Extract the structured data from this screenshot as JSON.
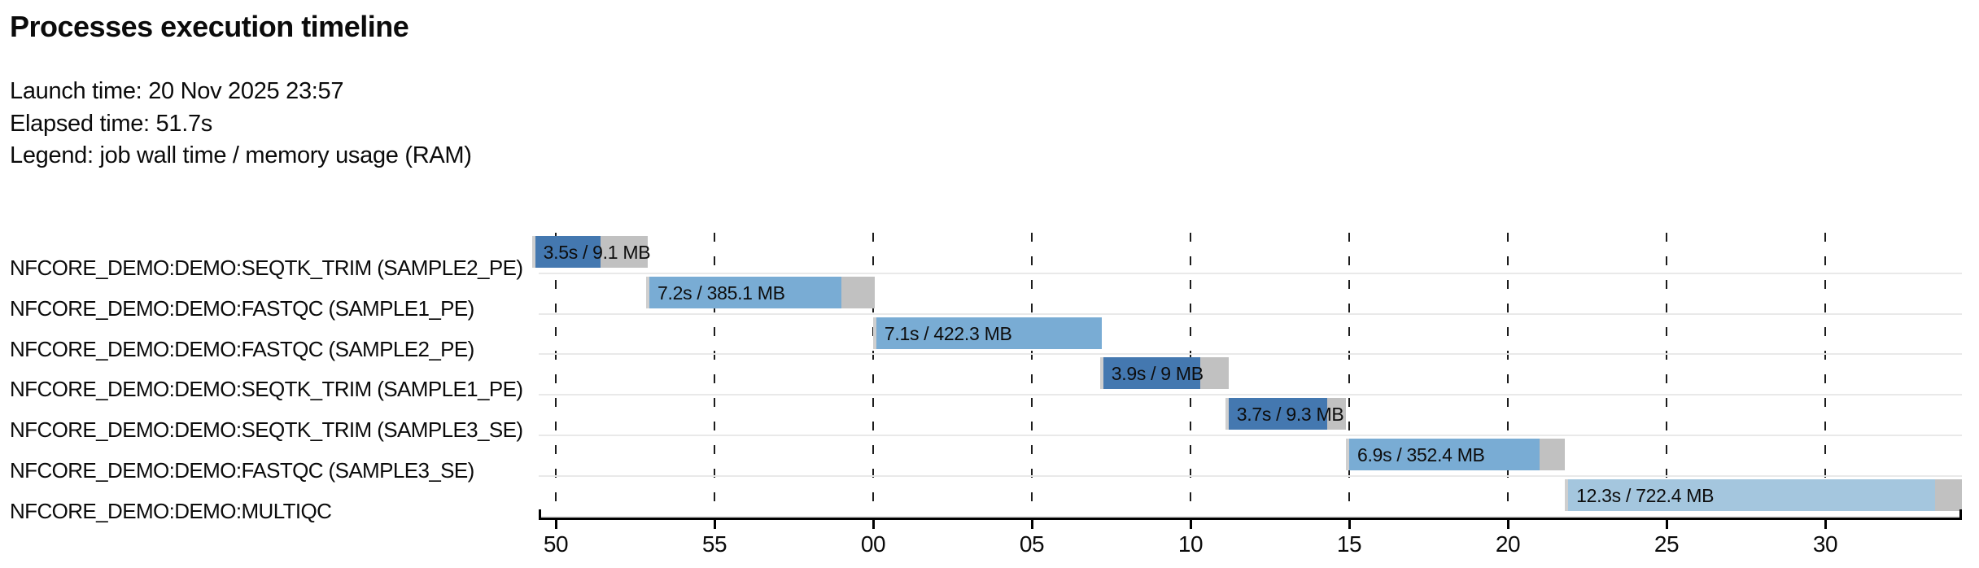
{
  "header": {
    "title": "Processes execution timeline",
    "launch_time": "Launch time: 20 Nov 2025 23:57",
    "elapsed_time": "Elapsed time: 51.7s",
    "legend": "Legend: job wall time / memory usage (RAM)"
  },
  "colors": {
    "trim_blue": "#4478b0",
    "fastqc_blue": "#79acd4",
    "multiqc_blue": "#a4c6de",
    "pending_gray": "#cfcfcf",
    "tail_gray": "#c1c1c1",
    "separator_gray": "#e9e9e9",
    "axis_black": "#000000"
  },
  "chart_data": {
    "type": "gantt",
    "title": "Processes execution timeline",
    "xlabel": "",
    "ylabel": "",
    "x_axis": {
      "unit": "seconds within minute (clock seconds after 23:57)",
      "tick_labels": [
        "50",
        "55",
        "00",
        "05",
        "10",
        "15",
        "20",
        "25",
        "30"
      ],
      "tick_seconds": [
        50,
        55,
        60,
        65,
        70,
        75,
        80,
        85,
        90
      ],
      "range_seconds": [
        49.4,
        94.3
      ],
      "grid": "dashed-vertical"
    },
    "tasks": [
      {
        "process": "NFCORE_DEMO:DEMO:SEQTK_TRIM (SAMPLE2_PE)",
        "bar_label": "3.5s / 9.1 MB",
        "wall_time_s": 3.5,
        "memory": "9.1 MB",
        "start_s": 49.35,
        "run_end_s": 51.4,
        "end_s": 52.9,
        "color_key": "trim_blue"
      },
      {
        "process": "NFCORE_DEMO:DEMO:FASTQC (SAMPLE1_PE)",
        "bar_label": "7.2s / 385.1 MB",
        "wall_time_s": 7.2,
        "memory": "385.1 MB",
        "start_s": 52.95,
        "run_end_s": 59.0,
        "end_s": 60.05,
        "color_key": "fastqc_blue"
      },
      {
        "process": "NFCORE_DEMO:DEMO:FASTQC (SAMPLE2_PE)",
        "bar_label": "7.1s / 422.3 MB",
        "wall_time_s": 7.1,
        "memory": "422.3 MB",
        "start_s": 60.1,
        "run_end_s": 67.2,
        "end_s": 67.2,
        "color_key": "fastqc_blue"
      },
      {
        "process": "NFCORE_DEMO:DEMO:SEQTK_TRIM (SAMPLE1_PE)",
        "bar_label": "3.9s / 9 MB",
        "wall_time_s": 3.9,
        "memory": "9 MB",
        "start_s": 67.25,
        "run_end_s": 70.3,
        "end_s": 71.2,
        "color_key": "trim_blue"
      },
      {
        "process": "NFCORE_DEMO:DEMO:SEQTK_TRIM (SAMPLE3_SE)",
        "bar_label": "3.7s / 9.3 MB",
        "wall_time_s": 3.7,
        "memory": "9.3 MB",
        "start_s": 71.2,
        "run_end_s": 74.3,
        "end_s": 74.9,
        "color_key": "trim_blue"
      },
      {
        "process": "NFCORE_DEMO:DEMO:FASTQC (SAMPLE3_SE)",
        "bar_label": "6.9s / 352.4 MB",
        "wall_time_s": 6.9,
        "memory": "352.4 MB",
        "start_s": 75.0,
        "run_end_s": 81.0,
        "end_s": 81.8,
        "color_key": "fastqc_blue"
      },
      {
        "process": "NFCORE_DEMO:DEMO:MULTIQC",
        "bar_label": "12.3s / 722.4 MB",
        "wall_time_s": 12.3,
        "memory": "722.4 MB",
        "start_s": 81.9,
        "run_end_s": 93.45,
        "end_s": 94.3,
        "color_key": "multiqc_blue"
      }
    ]
  }
}
